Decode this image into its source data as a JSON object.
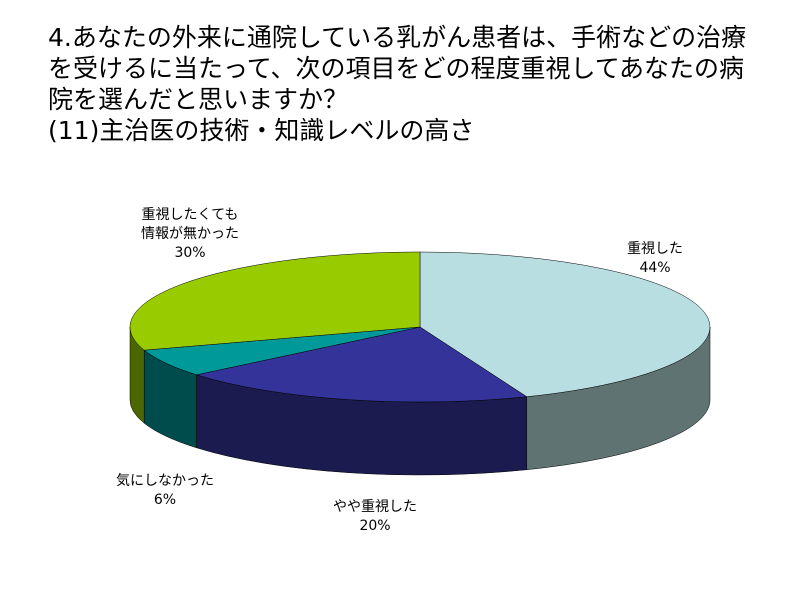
{
  "chart_data": {
    "type": "pie3d",
    "title": "4.あなたの外来に通院している乳がん患者は、手術などの治療を受けるに当たって、次の項目をどの程度重視してあなたの病院を選んだと思いますか？",
    "subtitle": "(11)主治医の技術・知識レベルの高さ",
    "categories": [
      "重視した",
      "やや重視した",
      "気にしなかった",
      "重視したくても情報が無かった"
    ],
    "values": [
      44,
      20,
      6,
      30
    ],
    "value_labels": [
      "44%",
      "20%",
      "6%",
      "30%"
    ],
    "colors": [
      "#b9dee2",
      "#333399",
      "#009999",
      "#99cc00"
    ],
    "side_colors": [
      "#5f7373",
      "#1b1b4f",
      "#004c4c",
      "#4c6600"
    ]
  }
}
